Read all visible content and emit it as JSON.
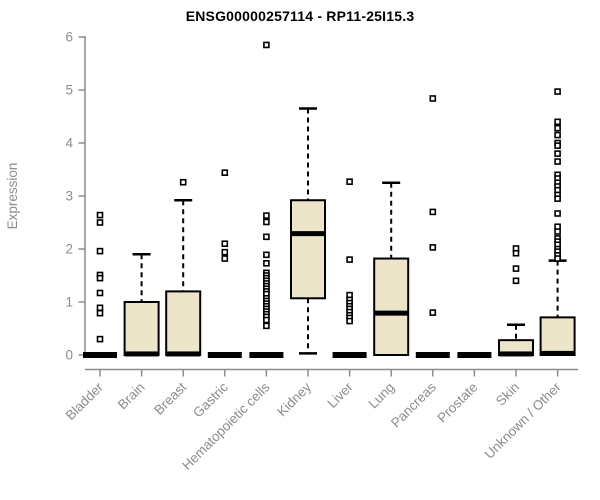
{
  "chart_data": {
    "type": "boxplot",
    "title": "ENSG00000257114 - RP11-25I15.3",
    "xlabel": "",
    "ylabel": "Expression",
    "ylim": [
      0,
      6
    ],
    "yticks": [
      0,
      1,
      2,
      3,
      4,
      5,
      6
    ],
    "grid": false,
    "legend": "none",
    "categories": [
      "Bladder",
      "Brain",
      "Breast",
      "Gastric",
      "Hematopoietic cells",
      "Kidney",
      "Liver",
      "Lung",
      "Pancreas",
      "Prostate",
      "Skin",
      "Unknown / Other"
    ],
    "series": [
      {
        "category": "Bladder",
        "q1": 0,
        "median": 0,
        "q3": 0,
        "whisker_low": 0,
        "whisker_high": 0,
        "outliers": [
          2.64,
          2.5,
          1.96,
          1.51,
          1.45,
          1.17,
          0.89,
          0.79,
          0.3
        ]
      },
      {
        "category": "Brain",
        "q1": 0,
        "median": 0.02,
        "q3": 1.0,
        "whisker_low": 0,
        "whisker_high": 1.9,
        "outliers": []
      },
      {
        "category": "Breast",
        "q1": 0,
        "median": 0.02,
        "q3": 1.2,
        "whisker_low": 0,
        "whisker_high": 2.92,
        "outliers": [
          3.26
        ]
      },
      {
        "category": "Gastric",
        "q1": 0,
        "median": 0,
        "q3": 0,
        "whisker_low": 0,
        "whisker_high": 0,
        "outliers": [
          3.44,
          2.1,
          1.94,
          1.82
        ]
      },
      {
        "category": "Hematopoietic cells",
        "q1": 0,
        "median": 0,
        "q3": 0,
        "whisker_low": 0,
        "whisker_high": 0,
        "outliers": [
          5.85,
          2.63,
          2.51,
          2.23,
          1.89,
          1.73,
          1.55,
          1.5,
          1.45,
          1.4,
          1.35,
          1.3,
          1.25,
          1.2,
          1.15,
          1.07,
          1.02,
          0.97,
          0.92,
          0.87,
          0.82,
          0.77,
          0.72,
          0.66,
          0.55
        ]
      },
      {
        "category": "Kidney",
        "q1": 1.07,
        "median": 2.29,
        "q3": 2.92,
        "whisker_low": 0.03,
        "whisker_high": 4.65,
        "outliers": []
      },
      {
        "category": "Liver",
        "q1": 0,
        "median": 0,
        "q3": 0,
        "whisker_low": 0,
        "whisker_high": 0,
        "outliers": [
          3.27,
          1.8,
          1.13,
          1.04,
          0.98,
          0.92,
          0.87,
          0.81,
          0.75,
          0.7,
          0.64
        ]
      },
      {
        "category": "Lung",
        "q1": 0,
        "median": 0.79,
        "q3": 1.82,
        "whisker_low": 0,
        "whisker_high": 3.25,
        "outliers": []
      },
      {
        "category": "Pancreas",
        "q1": 0,
        "median": 0,
        "q3": 0,
        "whisker_low": 0,
        "whisker_high": 0,
        "outliers": [
          4.84,
          2.7,
          2.03,
          0.8
        ]
      },
      {
        "category": "Prostate",
        "q1": 0,
        "median": 0,
        "q3": 0,
        "whisker_low": 0,
        "whisker_high": 0,
        "outliers": []
      },
      {
        "category": "Skin",
        "q1": 0,
        "median": 0.02,
        "q3": 0.28,
        "whisker_low": 0,
        "whisker_high": 0.57,
        "outliers": [
          2.01,
          1.92,
          1.63,
          1.4
        ]
      },
      {
        "category": "Unknown / Other",
        "q1": 0,
        "median": 0.03,
        "q3": 0.71,
        "whisker_low": 0,
        "whisker_high": 1.78,
        "outliers": [
          4.97,
          4.4,
          4.28,
          4.15,
          4.0,
          3.95,
          3.8,
          3.65,
          3.4,
          3.33,
          3.25,
          3.18,
          3.11,
          3.02,
          2.95,
          2.67,
          2.42,
          2.33,
          2.2,
          2.14,
          2.08,
          2.0,
          1.95,
          1.88,
          1.82
        ]
      }
    ],
    "colors": {
      "box_fill": "#ece5c9",
      "box_stroke": "#000000",
      "median": "#000000",
      "whisker": "#000000",
      "outlier_stroke": "#000000",
      "outlier_fill": "#ffffff",
      "axis": "#8c8c8c",
      "tick_label": "#8c8c8c",
      "title": "#000000",
      "background": "#ffffff"
    }
  }
}
